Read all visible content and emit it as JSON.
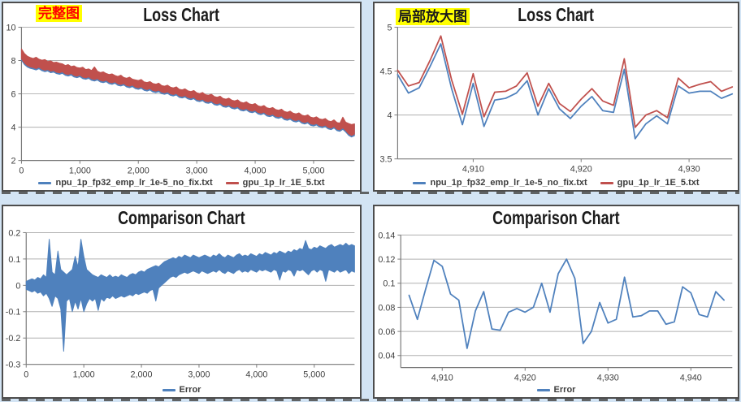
{
  "page": {
    "background": "#d3e4f4"
  },
  "colors": {
    "series_blue": "#4f81bd",
    "series_red": "#c0504d",
    "grid": "#b0b0b0",
    "axis": "#7a7a7a",
    "panel_border": "#4d4d4d",
    "title_text": "#1b1b1b",
    "tick_text": "#404040",
    "badge_highlight": "#ffff00",
    "badge_text_full": "#ff0000",
    "badge_text_zoom": "#1a1a1a"
  },
  "chart_data": [
    {
      "id": "loss-full",
      "type": "line",
      "title": "Loss Chart",
      "badge": "完整图",
      "badge_style": {
        "color": "#ff0000",
        "background": "#ffff00"
      },
      "grid": true,
      "legend_position": "bottom",
      "x_range": [
        0,
        5700
      ],
      "y_range": [
        2,
        10
      ],
      "x_ticks": [
        {
          "v": 0,
          "label": "0"
        },
        {
          "v": 1000,
          "label": "1,000"
        },
        {
          "v": 2000,
          "label": "2,000"
        },
        {
          "v": 3000,
          "label": "3,000"
        },
        {
          "v": 4000,
          "label": "4,000"
        },
        {
          "v": 5000,
          "label": "5,000"
        }
      ],
      "y_ticks": [
        {
          "v": 10,
          "label": "10"
        },
        {
          "v": 8,
          "label": "8"
        },
        {
          "v": 6,
          "label": "6"
        },
        {
          "v": 4,
          "label": "4"
        },
        {
          "v": 2,
          "label": "2"
        }
      ],
      "envelope": {
        "note": "noisy loss band sampled every 50 steps; hi/lo are the visual noise envelope",
        "x0": 0,
        "dx": 50,
        "hi": [
          8.7,
          8.42,
          8.26,
          8.18,
          8.12,
          8.2,
          8.08,
          8.02,
          8.06,
          7.94,
          7.98,
          7.88,
          7.9,
          7.84,
          7.8,
          7.7,
          7.76,
          7.64,
          7.68,
          7.58,
          7.55,
          7.6,
          7.46,
          7.5,
          7.4,
          7.62,
          7.36,
          7.28,
          7.32,
          7.22,
          7.16,
          7.2,
          7.1,
          7.05,
          7.12,
          6.98,
          6.94,
          7.0,
          6.88,
          6.84,
          6.8,
          6.86,
          6.72,
          6.68,
          6.74,
          6.62,
          6.58,
          6.64,
          6.5,
          6.46,
          6.52,
          6.4,
          6.36,
          6.42,
          6.28,
          6.24,
          6.3,
          6.18,
          6.14,
          6.2,
          6.06,
          6.02,
          6.08,
          5.95,
          5.92,
          5.98,
          5.84,
          5.8,
          5.86,
          5.72,
          5.68,
          5.74,
          5.62,
          5.58,
          5.64,
          5.5,
          5.46,
          5.52,
          5.4,
          5.36,
          5.42,
          5.28,
          5.24,
          5.3,
          5.16,
          5.12,
          5.18,
          5.06,
          5.02,
          5.08,
          4.94,
          4.9,
          4.96,
          4.84,
          4.8,
          4.86,
          4.72,
          4.68,
          4.74,
          4.6,
          4.56,
          4.62,
          4.5,
          4.46,
          4.52,
          4.38,
          4.34,
          4.44,
          4.28,
          4.24,
          4.6,
          4.3,
          4.22,
          4.16,
          4.2
        ],
        "lo": [
          8.1,
          7.85,
          7.7,
          7.62,
          7.58,
          7.52,
          7.6,
          7.48,
          7.42,
          7.46,
          7.36,
          7.4,
          7.3,
          7.26,
          7.32,
          7.2,
          7.16,
          7.22,
          7.1,
          7.06,
          7.12,
          7.0,
          6.96,
          7.02,
          6.9,
          6.86,
          6.92,
          6.8,
          6.76,
          6.82,
          6.7,
          6.66,
          6.72,
          6.6,
          6.56,
          6.62,
          6.5,
          6.46,
          6.52,
          6.4,
          6.36,
          6.42,
          6.3,
          6.26,
          6.32,
          6.2,
          6.16,
          6.22,
          6.1,
          6.06,
          6.12,
          6.0,
          5.96,
          6.02,
          5.88,
          5.84,
          5.9,
          5.78,
          5.74,
          5.8,
          5.66,
          5.62,
          5.68,
          5.55,
          5.52,
          5.58,
          5.44,
          5.4,
          5.46,
          5.32,
          5.28,
          5.34,
          5.22,
          5.18,
          5.24,
          5.1,
          5.06,
          5.12,
          5.0,
          4.96,
          5.02,
          4.88,
          4.84,
          4.9,
          4.76,
          4.72,
          4.78,
          4.66,
          4.62,
          4.68,
          4.54,
          4.5,
          4.56,
          4.44,
          4.4,
          4.46,
          4.32,
          4.28,
          4.34,
          4.2,
          4.16,
          4.22,
          4.1,
          4.06,
          4.12,
          3.98,
          3.94,
          4.04,
          3.88,
          3.84,
          3.96,
          3.8,
          3.6,
          3.5,
          3.58
        ]
      },
      "series": [
        {
          "name": "npu_1p_fp32_emp_lr_1e-5_no_fix.txt",
          "color": "#4f81bd",
          "style": "band",
          "hi_shift": -0.03,
          "lo_shift": -0.09
        },
        {
          "name": "gpu_1p_lr_1E_5.txt",
          "color": "#c0504d",
          "style": "band",
          "hi_shift": 0,
          "lo_shift": 0
        }
      ]
    },
    {
      "id": "loss-zoom",
      "type": "line",
      "title": "Loss Chart",
      "badge": "局部放大图",
      "badge_style": {
        "color": "#1a1a1a",
        "background": "#ffff00"
      },
      "grid": true,
      "legend_position": "bottom",
      "x_range": [
        4903,
        4934
      ],
      "y_range": [
        3.5,
        5
      ],
      "x_ticks": [
        {
          "v": 4910,
          "label": "4,910"
        },
        {
          "v": 4920,
          "label": "4,920"
        },
        {
          "v": 4930,
          "label": "4,930"
        }
      ],
      "y_ticks": [
        {
          "v": 5,
          "label": "5"
        },
        {
          "v": 4.5,
          "label": "4.5"
        },
        {
          "v": 4,
          "label": "4"
        },
        {
          "v": 3.5,
          "label": "3.5"
        }
      ],
      "series": [
        {
          "name": "npu_1p_fp32_emp_lr_1e-5_no_fix.txt",
          "color": "#4f81bd",
          "style": "line",
          "points": {
            "x0": 4903,
            "dx": 1,
            "y": [
              4.46,
              4.25,
              4.31,
              4.55,
              4.81,
              4.3,
              3.89,
              4.36,
              3.87,
              4.17,
              4.19,
              4.25,
              4.39,
              4.0,
              4.3,
              4.07,
              3.96,
              4.1,
              4.21,
              4.05,
              4.03,
              4.52,
              3.73,
              3.9,
              3.99,
              3.9,
              4.33,
              4.25,
              4.27,
              4.27,
              4.19,
              4.24
            ]
          }
        },
        {
          "name": "gpu_1p_lr_1E_5.txt",
          "color": "#c0504d",
          "style": "line",
          "points": {
            "x0": 4903,
            "dx": 1,
            "y": [
              4.51,
              4.33,
              4.37,
              4.62,
              4.9,
              4.4,
              4.01,
              4.47,
              3.98,
              4.26,
              4.27,
              4.33,
              4.48,
              4.1,
              4.36,
              4.13,
              4.04,
              4.18,
              4.3,
              4.16,
              4.11,
              4.64,
              3.86,
              4.0,
              4.05,
              3.97,
              4.42,
              4.31,
              4.35,
              4.38,
              4.27,
              4.32
            ]
          }
        }
      ]
    },
    {
      "id": "comparison-full",
      "type": "line",
      "title": "Comparison Chart",
      "grid": true,
      "legend_position": "bottom",
      "x_range": [
        0,
        5700
      ],
      "y_range": [
        -0.3,
        0.2
      ],
      "x_ticks": [
        {
          "v": 0,
          "label": "0"
        },
        {
          "v": 1000,
          "label": "1,000"
        },
        {
          "v": 2000,
          "label": "2,000"
        },
        {
          "v": 3000,
          "label": "3,000"
        },
        {
          "v": 4000,
          "label": "4,000"
        },
        {
          "v": 5000,
          "label": "5,000"
        }
      ],
      "y_ticks": [
        {
          "v": 0.2,
          "label": "0.2"
        },
        {
          "v": 0.1,
          "label": "0.1"
        },
        {
          "v": 0,
          "label": "0"
        },
        {
          "v": -0.1,
          "label": "-0.1"
        },
        {
          "v": -0.2,
          "label": "-0.2"
        },
        {
          "v": -0.3,
          "label": "-0.3"
        }
      ],
      "envelope": {
        "note": "noisy error band sampled every 50 steps; isolated spikes at ~400, ~650, ~950-1000, ~2250, ~4850",
        "x0": 0,
        "dx": 50,
        "hi": [
          0.015,
          0.02,
          0.025,
          0.02,
          0.03,
          0.025,
          0.04,
          0.03,
          0.175,
          0.05,
          0.04,
          0.13,
          0.06,
          0.05,
          0.04,
          0.05,
          0.06,
          0.11,
          0.07,
          0.175,
          0.11,
          0.06,
          0.05,
          0.04,
          0.035,
          0.03,
          0.04,
          0.035,
          0.03,
          0.04,
          0.03,
          0.035,
          0.03,
          0.04,
          0.035,
          0.03,
          0.04,
          0.045,
          0.04,
          0.05,
          0.055,
          0.05,
          0.06,
          0.065,
          0.07,
          0.075,
          0.07,
          0.08,
          0.09,
          0.095,
          0.1,
          0.105,
          0.1,
          0.11,
          0.105,
          0.115,
          0.11,
          0.105,
          0.115,
          0.11,
          0.105,
          0.11,
          0.115,
          0.11,
          0.105,
          0.115,
          0.11,
          0.12,
          0.11,
          0.105,
          0.115,
          0.11,
          0.105,
          0.115,
          0.12,
          0.11,
          0.115,
          0.11,
          0.12,
          0.115,
          0.11,
          0.12,
          0.115,
          0.125,
          0.12,
          0.115,
          0.125,
          0.12,
          0.13,
          0.125,
          0.12,
          0.13,
          0.125,
          0.135,
          0.13,
          0.14,
          0.135,
          0.17,
          0.14,
          0.135,
          0.145,
          0.14,
          0.15,
          0.145,
          0.14,
          0.15,
          0.155,
          0.145,
          0.15,
          0.155,
          0.15,
          0.16,
          0.15,
          0.155,
          0.15
        ],
        "lo": [
          -0.015,
          -0.02,
          -0.025,
          -0.02,
          -0.03,
          -0.025,
          -0.04,
          -0.03,
          -0.05,
          -0.08,
          -0.04,
          -0.05,
          -0.09,
          -0.25,
          -0.06,
          -0.05,
          -0.1,
          -0.06,
          -0.09,
          -0.05,
          -0.1,
          -0.07,
          -0.05,
          -0.06,
          -0.05,
          -0.095,
          -0.05,
          -0.06,
          -0.045,
          -0.05,
          -0.04,
          -0.05,
          -0.045,
          -0.04,
          -0.045,
          -0.04,
          -0.035,
          -0.04,
          -0.03,
          -0.035,
          -0.03,
          -0.025,
          -0.03,
          -0.02,
          -0.015,
          -0.06,
          -0.01,
          0.0,
          0.01,
          0.02,
          0.03,
          0.035,
          0.03,
          0.04,
          0.045,
          0.05,
          0.045,
          0.05,
          0.055,
          0.05,
          0.045,
          0.055,
          0.05,
          0.045,
          0.05,
          0.055,
          0.05,
          0.06,
          0.05,
          0.045,
          0.055,
          0.05,
          0.045,
          0.055,
          0.06,
          0.05,
          0.055,
          0.05,
          0.06,
          0.055,
          0.05,
          0.06,
          0.055,
          0.06,
          0.055,
          0.05,
          0.06,
          0.055,
          0.02,
          0.055,
          0.05,
          0.06,
          0.055,
          0.035,
          0.06,
          0.055,
          0.06,
          0.05,
          0.04,
          0.055,
          0.06,
          0.05,
          0.06,
          0.055,
          0.015,
          0.06,
          0.055,
          0.05,
          0.06,
          0.05,
          0.055,
          0.06,
          0.045,
          0.055,
          0.05
        ]
      },
      "series": [
        {
          "name": "Error",
          "color": "#4f81bd",
          "style": "band",
          "hi_shift": 0,
          "lo_shift": 0
        }
      ]
    },
    {
      "id": "comparison-zoom",
      "type": "line",
      "title": "Comparison Chart",
      "grid": true,
      "legend_position": "bottom",
      "x_range": [
        4905,
        4945
      ],
      "y_range": [
        0.03,
        0.14
      ],
      "x_ticks": [
        {
          "v": 4910,
          "label": "4,910"
        },
        {
          "v": 4920,
          "label": "4,920"
        },
        {
          "v": 4930,
          "label": "4,930"
        },
        {
          "v": 4940,
          "label": "4,940"
        }
      ],
      "y_ticks": [
        {
          "v": 0.14,
          "label": "0.14"
        },
        {
          "v": 0.12,
          "label": "0.12"
        },
        {
          "v": 0.1,
          "label": "0.1"
        },
        {
          "v": 0.08,
          "label": "0.08"
        },
        {
          "v": 0.06,
          "label": "0.06"
        },
        {
          "v": 0.04,
          "label": "0.04"
        }
      ],
      "series": [
        {
          "name": "Error",
          "color": "#4f81bd",
          "style": "line",
          "points": {
            "x0": 4906,
            "dx": 1,
            "y": [
              0.09,
              0.07,
              0.095,
              0.119,
              0.114,
              0.091,
              0.086,
              0.046,
              0.077,
              0.093,
              0.062,
              0.061,
              0.076,
              0.079,
              0.076,
              0.08,
              0.1,
              0.076,
              0.108,
              0.12,
              0.104,
              0.05,
              0.06,
              0.084,
              0.067,
              0.07,
              0.105,
              0.072,
              0.073,
              0.077,
              0.077,
              0.066,
              0.068,
              0.097,
              0.092,
              0.074,
              0.072,
              0.093,
              0.086
            ]
          }
        }
      ]
    }
  ]
}
